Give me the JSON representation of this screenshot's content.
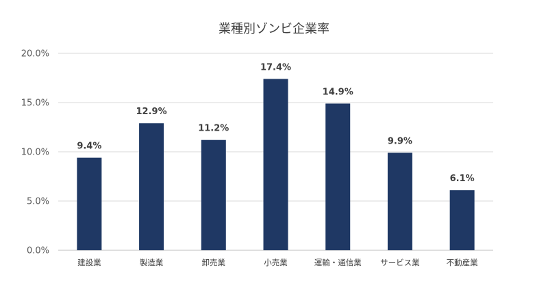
{
  "chart_data": {
    "type": "bar",
    "title": "業種別ゾンビ企業率",
    "categories": [
      "建設業",
      "製造業",
      "卸売業",
      "小売業",
      "運輸・通信業",
      "サービス業",
      "不動産業"
    ],
    "values": [
      9.4,
      12.9,
      11.2,
      17.4,
      14.9,
      9.9,
      6.1
    ],
    "data_labels": [
      "9.4%",
      "12.9%",
      "11.2%",
      "17.4%",
      "14.9%",
      "9.9%",
      "6.1%"
    ],
    "ylim": [
      0,
      20
    ],
    "yticks": [
      0,
      5,
      10,
      15,
      20
    ],
    "ytick_labels": [
      "0.0%",
      "5.0%",
      "10.0%",
      "15.0%",
      "20.0%"
    ],
    "grid": true,
    "bar_color": "#1f3864",
    "grid_color": "#d9d9d9"
  }
}
